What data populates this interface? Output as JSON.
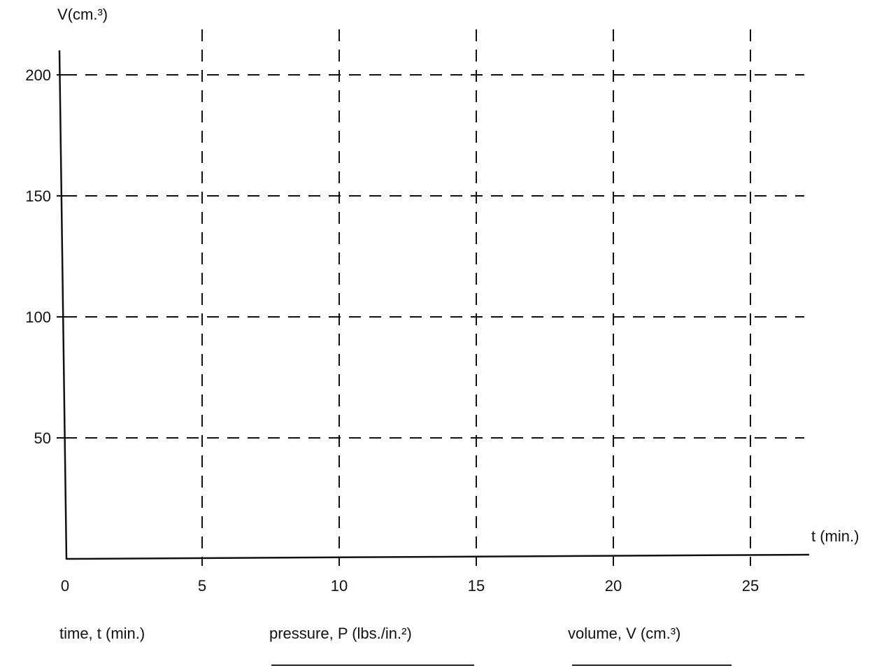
{
  "chart_data": {
    "type": "line",
    "title": "",
    "ylabel": "V(cm.³)",
    "xlabel": "t (min.)",
    "x_ticks": [
      0,
      5,
      10,
      15,
      20,
      25
    ],
    "y_ticks": [
      50,
      100,
      150,
      200
    ],
    "xlim": [
      0,
      27.5
    ],
    "ylim": [
      0,
      215
    ],
    "grid": "dashed",
    "series": []
  },
  "table": {
    "headings": [
      {
        "text": "time, t (min.)"
      },
      {
        "text": "pressure, P (lbs./in.²)"
      },
      {
        "text": "volume, V (cm.³)"
      }
    ]
  },
  "colors": {
    "ink": "#111111",
    "background": "#ffffff"
  }
}
